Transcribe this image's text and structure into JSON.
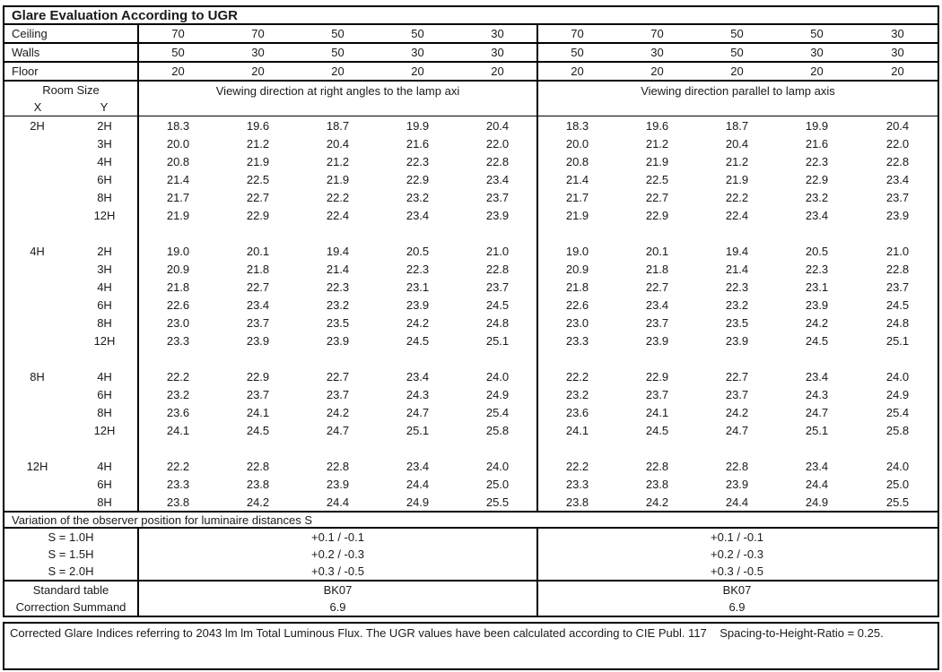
{
  "title": "Glare Evaluation According to UGR",
  "surface_rows": [
    {
      "label": "Ceiling",
      "values": [
        "70",
        "70",
        "50",
        "50",
        "30",
        "70",
        "70",
        "50",
        "50",
        "30"
      ]
    },
    {
      "label": "Walls",
      "values": [
        "50",
        "30",
        "50",
        "30",
        "30",
        "50",
        "30",
        "50",
        "30",
        "30"
      ]
    },
    {
      "label": "Floor",
      "values": [
        "20",
        "20",
        "20",
        "20",
        "20",
        "20",
        "20",
        "20",
        "20",
        "20"
      ]
    }
  ],
  "header": {
    "room_size": "Room Size",
    "x": "X",
    "y": "Y",
    "left_section": "Viewing direction at right angles to the lamp axi",
    "right_section": "Viewing direction parallel to lamp axis"
  },
  "ugr_blocks": [
    {
      "x": "2H",
      "rows": [
        {
          "y": "2H",
          "right_angles": [
            "18.3",
            "19.6",
            "18.7",
            "19.9",
            "20.4"
          ],
          "parallel": [
            "18.3",
            "19.6",
            "18.7",
            "19.9",
            "20.4"
          ]
        },
        {
          "y": "3H",
          "right_angles": [
            "20.0",
            "21.2",
            "20.4",
            "21.6",
            "22.0"
          ],
          "parallel": [
            "20.0",
            "21.2",
            "20.4",
            "21.6",
            "22.0"
          ]
        },
        {
          "y": "4H",
          "right_angles": [
            "20.8",
            "21.9",
            "21.2",
            "22.3",
            "22.8"
          ],
          "parallel": [
            "20.8",
            "21.9",
            "21.2",
            "22.3",
            "22.8"
          ]
        },
        {
          "y": "6H",
          "right_angles": [
            "21.4",
            "22.5",
            "21.9",
            "22.9",
            "23.4"
          ],
          "parallel": [
            "21.4",
            "22.5",
            "21.9",
            "22.9",
            "23.4"
          ]
        },
        {
          "y": "8H",
          "right_angles": [
            "21.7",
            "22.7",
            "22.2",
            "23.2",
            "23.7"
          ],
          "parallel": [
            "21.7",
            "22.7",
            "22.2",
            "23.2",
            "23.7"
          ]
        },
        {
          "y": "12H",
          "right_angles": [
            "21.9",
            "22.9",
            "22.4",
            "23.4",
            "23.9"
          ],
          "parallel": [
            "21.9",
            "22.9",
            "22.4",
            "23.4",
            "23.9"
          ]
        }
      ]
    },
    {
      "x": "4H",
      "rows": [
        {
          "y": "2H",
          "right_angles": [
            "19.0",
            "20.1",
            "19.4",
            "20.5",
            "21.0"
          ],
          "parallel": [
            "19.0",
            "20.1",
            "19.4",
            "20.5",
            "21.0"
          ]
        },
        {
          "y": "3H",
          "right_angles": [
            "20.9",
            "21.8",
            "21.4",
            "22.3",
            "22.8"
          ],
          "parallel": [
            "20.9",
            "21.8",
            "21.4",
            "22.3",
            "22.8"
          ]
        },
        {
          "y": "4H",
          "right_angles": [
            "21.8",
            "22.7",
            "22.3",
            "23.1",
            "23.7"
          ],
          "parallel": [
            "21.8",
            "22.7",
            "22.3",
            "23.1",
            "23.7"
          ]
        },
        {
          "y": "6H",
          "right_angles": [
            "22.6",
            "23.4",
            "23.2",
            "23.9",
            "24.5"
          ],
          "parallel": [
            "22.6",
            "23.4",
            "23.2",
            "23.9",
            "24.5"
          ]
        },
        {
          "y": "8H",
          "right_angles": [
            "23.0",
            "23.7",
            "23.5",
            "24.2",
            "24.8"
          ],
          "parallel": [
            "23.0",
            "23.7",
            "23.5",
            "24.2",
            "24.8"
          ]
        },
        {
          "y": "12H",
          "right_angles": [
            "23.3",
            "23.9",
            "23.9",
            "24.5",
            "25.1"
          ],
          "parallel": [
            "23.3",
            "23.9",
            "23.9",
            "24.5",
            "25.1"
          ]
        }
      ]
    },
    {
      "x": "8H",
      "rows": [
        {
          "y": "4H",
          "right_angles": [
            "22.2",
            "22.9",
            "22.7",
            "23.4",
            "24.0"
          ],
          "parallel": [
            "22.2",
            "22.9",
            "22.7",
            "23.4",
            "24.0"
          ]
        },
        {
          "y": "6H",
          "right_angles": [
            "23.2",
            "23.7",
            "23.7",
            "24.3",
            "24.9"
          ],
          "parallel": [
            "23.2",
            "23.7",
            "23.7",
            "24.3",
            "24.9"
          ]
        },
        {
          "y": "8H",
          "right_angles": [
            "23.6",
            "24.1",
            "24.2",
            "24.7",
            "25.4"
          ],
          "parallel": [
            "23.6",
            "24.1",
            "24.2",
            "24.7",
            "25.4"
          ]
        },
        {
          "y": "12H",
          "right_angles": [
            "24.1",
            "24.5",
            "24.7",
            "25.1",
            "25.8"
          ],
          "parallel": [
            "24.1",
            "24.5",
            "24.7",
            "25.1",
            "25.8"
          ]
        }
      ]
    },
    {
      "x": "12H",
      "rows": [
        {
          "y": "4H",
          "right_angles": [
            "22.2",
            "22.8",
            "22.8",
            "23.4",
            "24.0"
          ],
          "parallel": [
            "22.2",
            "22.8",
            "22.8",
            "23.4",
            "24.0"
          ]
        },
        {
          "y": "6H",
          "right_angles": [
            "23.3",
            "23.8",
            "23.9",
            "24.4",
            "25.0"
          ],
          "parallel": [
            "23.3",
            "23.8",
            "23.9",
            "24.4",
            "25.0"
          ]
        },
        {
          "y": "8H",
          "right_angles": [
            "23.8",
            "24.2",
            "24.4",
            "24.9",
            "25.5"
          ],
          "parallel": [
            "23.8",
            "24.2",
            "24.4",
            "24.9",
            "25.5"
          ]
        }
      ]
    }
  ],
  "variation": {
    "heading": "Variation of the observer position for luminaire distances S",
    "rows": [
      {
        "label": "S = 1.0H",
        "left": "+0.1 / -0.1",
        "right": "+0.1 / -0.1"
      },
      {
        "label": "S = 1.5H",
        "left": "+0.2 / -0.3",
        "right": "+0.2 / -0.3"
      },
      {
        "label": "S = 2.0H",
        "left": "+0.3 / -0.5",
        "right": "+0.3 / -0.5"
      }
    ]
  },
  "summary_rows": [
    {
      "label": "Standard table",
      "left": "BK07",
      "right": "BK07"
    },
    {
      "label": "Correction Summand",
      "left": "6.9",
      "right": "6.9"
    }
  ],
  "footer": {
    "text": "Corrected Glare Indices referring to 2043 lm lm Total Luminous Flux. The UGR values have been calculated according to CIE Publ. 117    Spacing-to-Height-Ratio = 0.25."
  }
}
